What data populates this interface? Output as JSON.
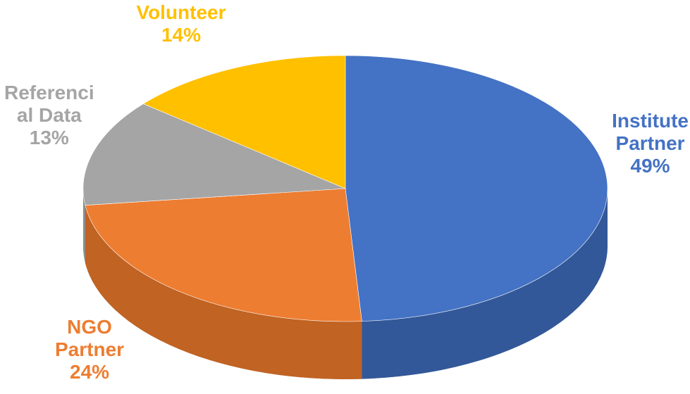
{
  "chart_data": {
    "type": "pie",
    "style": "3d",
    "start": "12 o'clock",
    "direction": "clockwise",
    "slices": [
      {
        "line1": "Institute",
        "line2": "Partner",
        "line3": "",
        "pct_label": "49%",
        "value": 49,
        "color": "#4472C4",
        "side_dark": "#1F3864"
      },
      {
        "line1": "NGO",
        "line2": "Partner",
        "line3": "",
        "pct_label": "24%",
        "value": 24,
        "color": "#ED7D31",
        "side_dark": "#8A4413"
      },
      {
        "line1": "Referenci",
        "line2": "al Data",
        "line3": "",
        "pct_label": "13%",
        "value": 13,
        "color": "#A5A5A5",
        "side_dark": "#6E6E6E"
      },
      {
        "line1": "Volunteer",
        "line2": "",
        "line3": "",
        "pct_label": "14%",
        "value": 14,
        "color": "#FFC000",
        "side_dark": "#B88A00"
      }
    ]
  }
}
